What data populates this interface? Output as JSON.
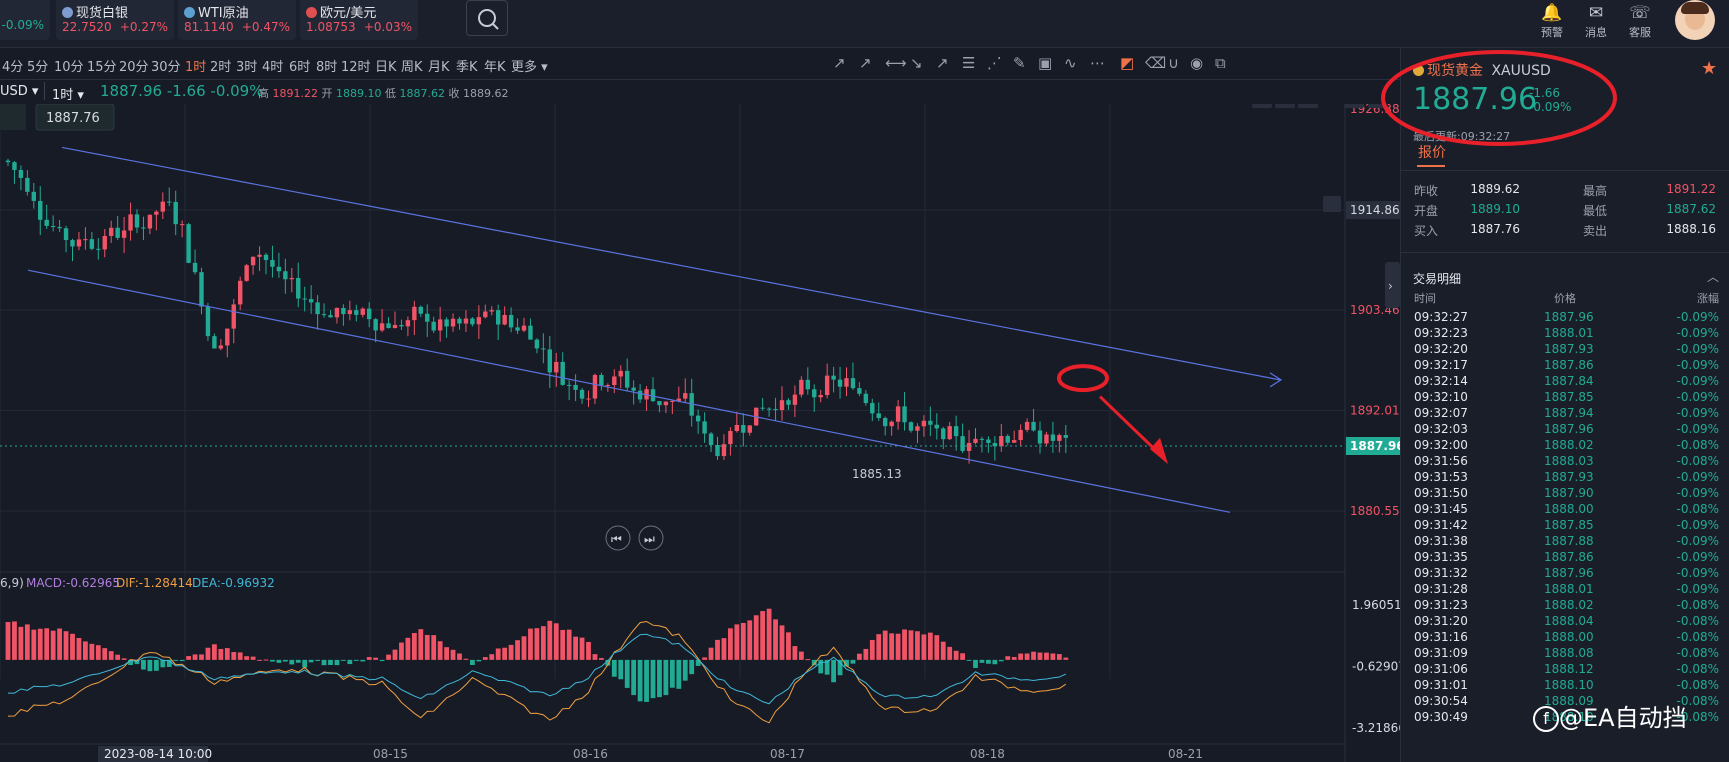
{
  "tickers": [
    {
      "name": "",
      "price": "",
      "change": "-0.09%",
      "dot": "#e0a93a"
    },
    {
      "name": "现货白银",
      "price": "22.7520",
      "change": "+0.27%",
      "dot": "#7e9ccf"
    },
    {
      "name": "WTI原油",
      "price": "81.1140",
      "change": "+0.47%",
      "dot": "#5ba0d0"
    },
    {
      "name": "欧元/美元",
      "price": "1.08753",
      "change": "+0.03%",
      "dot": "#e05050"
    }
  ],
  "top_icons": [
    {
      "label": "预警",
      "icon": "bell-icon",
      "glyph": "🔔"
    },
    {
      "label": "消息",
      "icon": "mail-icon",
      "glyph": "✉"
    },
    {
      "label": "客服",
      "icon": "headset-icon",
      "glyph": "☏"
    }
  ],
  "timeframes": [
    "4分",
    "5分",
    "10分",
    "15分",
    "20分",
    "30分",
    "1时",
    "2时",
    "3时",
    "4时",
    "6时",
    "8时",
    "12时",
    "日K",
    "周K",
    "月K",
    "季K",
    "年K",
    "更多"
  ],
  "active_timeframe": "1时",
  "infobar": {
    "symbol": "USD",
    "interval": "1时",
    "price": "1887.96",
    "change": "-1.66",
    "change_pct": "-0.09%",
    "high_label": "高",
    "high": "1891.22",
    "open_label": "开",
    "open": "1889.10",
    "low_label": "低",
    "low": "1887.62",
    "close_label": "收",
    "close": "1889.62"
  },
  "price_box": "1887.76",
  "price_axis": [
    "1926.38",
    "1914.86",
    "1903.46",
    "1892.01",
    "1880.55"
  ],
  "current_price_tag": "1887.96",
  "min_label": "1885.13",
  "macd_header": {
    "params": "6,9)",
    "macd": "MACD:-0.62965",
    "dif": "DIF:-1.28414",
    "dea": "DEA:-0.96932"
  },
  "macd_axis": [
    "1.96051",
    "-0.62907",
    "-3.21866"
  ],
  "date_axis": [
    "2023-08-14 10:00",
    "08-15",
    "08-16",
    "08-17",
    "08-18",
    "08-21"
  ],
  "sidebar": {
    "name": "现货黄金",
    "code": "XAUUSD",
    "price": "1887.96",
    "change": "-1.66",
    "change_pct": "-0.09%",
    "updated": "最后更新:09:32:27",
    "tab": "报价",
    "quote": [
      {
        "l1": "昨收",
        "v1": "1889.62",
        "l2": "最高",
        "v2": "1891.22"
      },
      {
        "l1": "开盘",
        "v1": "1889.10",
        "l2": "最低",
        "v2": "1887.62"
      },
      {
        "l1": "买入",
        "v1": "1887.76",
        "l2": "卖出",
        "v2": "1888.16"
      }
    ],
    "trades_title": "交易明细",
    "trade_cols": [
      "时间",
      "价格",
      "涨幅"
    ],
    "trades": [
      [
        "09:32:27",
        "1887.96",
        "-0.09%"
      ],
      [
        "09:32:23",
        "1888.01",
        "-0.09%"
      ],
      [
        "09:32:20",
        "1887.93",
        "-0.09%"
      ],
      [
        "09:32:17",
        "1887.86",
        "-0.09%"
      ],
      [
        "09:32:14",
        "1887.84",
        "-0.09%"
      ],
      [
        "09:32:10",
        "1887.85",
        "-0.09%"
      ],
      [
        "09:32:07",
        "1887.94",
        "-0.09%"
      ],
      [
        "09:32:03",
        "1887.96",
        "-0.09%"
      ],
      [
        "09:32:00",
        "1888.02",
        "-0.08%"
      ],
      [
        "09:31:56",
        "1888.03",
        "-0.08%"
      ],
      [
        "09:31:53",
        "1887.93",
        "-0.09%"
      ],
      [
        "09:31:50",
        "1887.90",
        "-0.09%"
      ],
      [
        "09:31:45",
        "1888.00",
        "-0.08%"
      ],
      [
        "09:31:42",
        "1887.85",
        "-0.09%"
      ],
      [
        "09:31:38",
        "1887.88",
        "-0.09%"
      ],
      [
        "09:31:35",
        "1887.86",
        "-0.09%"
      ],
      [
        "09:31:32",
        "1887.96",
        "-0.09%"
      ],
      [
        "09:31:28",
        "1888.01",
        "-0.09%"
      ],
      [
        "09:31:23",
        "1888.02",
        "-0.08%"
      ],
      [
        "09:31:20",
        "1888.04",
        "-0.08%"
      ],
      [
        "09:31:16",
        "1888.00",
        "-0.08%"
      ],
      [
        "09:31:09",
        "1888.08",
        "-0.08%"
      ],
      [
        "09:31:06",
        "1888.12",
        "-0.08%"
      ],
      [
        "09:31:01",
        "1888.10",
        "-0.08%"
      ],
      [
        "09:30:54",
        "1888.09",
        "-0.08%"
      ],
      [
        "09:30:49",
        "1888.10",
        "-0.08%"
      ]
    ]
  },
  "watermark": "@EA自动挡",
  "colors": {
    "up": "#f05466",
    "down": "#22ab94",
    "accent": "#f0724a",
    "annotation": "#e8202a",
    "trendline": "#5b73e0"
  }
}
